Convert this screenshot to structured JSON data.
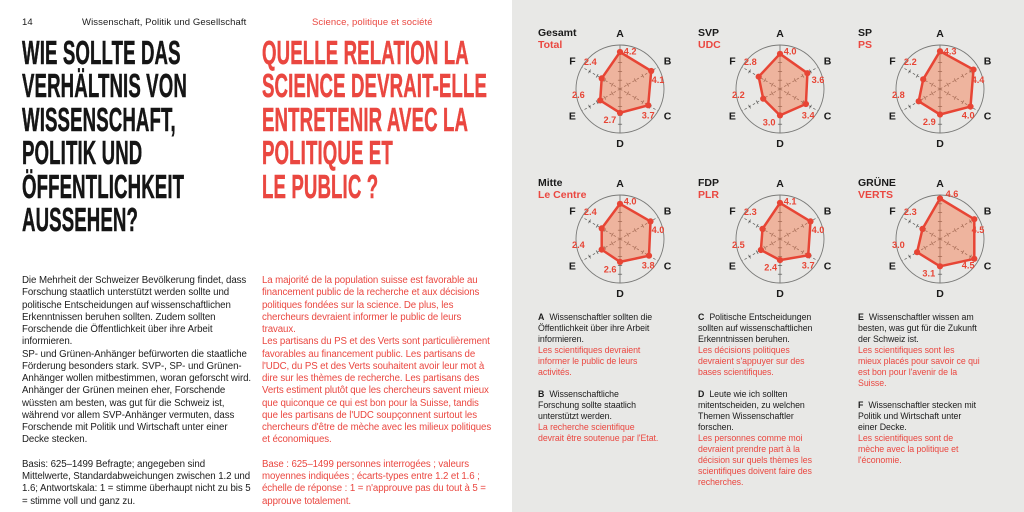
{
  "page": {
    "number": "14",
    "header_de": "Wissenschaft, Politik und Gesellschaft",
    "header_fr": "Science, politique et société",
    "title_de_lines": [
      "WIE SOLLTE DAS",
      "VERHÄLTNIS VON",
      "WISSENSCHAFT,",
      "POLITIK UND",
      "ÖFFENTLICHKEIT",
      "AUSSEHEN?"
    ],
    "title_fr_lines": [
      "QUELLE RELATION LA",
      "SCIENCE DEVRAIT-ELLE",
      "ENTRETENIR AVEC LA",
      "POLITIQUE ET",
      "LE PUBLIC ?"
    ],
    "body_de": [
      "Die Mehrheit der Schweizer Bevölkerung findet, dass Forschung staatlich unterstützt werden sollte und politische Entscheidungen auf wissenschaft­lichen Erkenntnissen beruhen sollten. Zudem sollten Forschende die Öffentlichkeit über ihre Arbeit informieren.",
      "SP- und Grünen-Anhänger befürworten die staatliche Förderung besonders stark. SVP-, SP- und Grünen-Anhänger wollen mitbestimmen, woran geforscht wird. Anhänger der Grünen meinen eher, Forschende wüssten am besten, was gut für die Schweiz ist, während vor allem SVP-Anhänger vermuten, dass Forschende mit Politik und Wirtschaft unter einer Decke stecken."
    ],
    "basis_de": "Basis: 625–1499 Befragte; angegeben sind Mittelwerte, Standardabweichungen zwischen 1.2 und 1.6; Antwortskala: 1 = stimme überhaupt nicht zu bis 5 = stimme voll und ganz zu.",
    "body_fr": [
      "La majorité de la population suisse est favorable au financement public de la recherche et aux décisions politiques fondées sur la science. De plus, les chercheurs devraient informer le public de leurs travaux.",
      "Les partisans du PS et des Verts sont particulièrement favorables au financement public. Les partisans de l'UDC, du PS et des Verts souhaitent avoir leur mot à dire sur les thèmes de recherche. Les partisans des Verts estiment plutôt que les chercheurs savent mieux que quiconque ce qui est bon pour la Suisse, tandis que les partisans de l'UDC soupçonnent surtout les chercheurs d'être de mèche avec les milieux politiques et économiques."
    ],
    "base_fr": "Base : 625–1499 personnes interrogées ; valeurs moyennes indiquées ; écarts-types entre 1.2 et 1.6 ; échelle de réponse : 1 = n'approuve pas du tout à 5 = approuve totalement."
  },
  "colors": {
    "red": "#ea4740",
    "chart_stroke": "#e74535",
    "chart_fill": "rgba(246,118,72,0.45)",
    "axis": "#4a4a48",
    "circle": "#7a7a78",
    "black": "#1a1a1a",
    "right_bg": "#e8e8e6"
  },
  "chart_data": {
    "type": "radar",
    "axes": [
      "A",
      "B",
      "C",
      "D",
      "E",
      "F"
    ],
    "scale_min": 0,
    "scale_max": 5,
    "charts": [
      {
        "title_de": "Gesamt",
        "title_fr": "Total",
        "values": [
          "4.2",
          "4.1",
          "3.7",
          "2.7",
          "2.6",
          "2.4"
        ]
      },
      {
        "title_de": "SVP",
        "title_fr": "UDC",
        "values": [
          "4.0",
          "3.6",
          "3.4",
          "3.0",
          "2.2",
          "2.8"
        ]
      },
      {
        "title_de": "SP",
        "title_fr": "PS",
        "values": [
          "4.3",
          "4.4",
          "4.0",
          "2.9",
          "2.8",
          "2.2"
        ]
      },
      {
        "title_de": "Mitte",
        "title_fr": "Le Centre",
        "values": [
          "4.0",
          "4.0",
          "3.8",
          "2.6",
          "2.4",
          "2.4"
        ]
      },
      {
        "title_de": "FDP",
        "title_fr": "PLR",
        "values": [
          "4.1",
          "4.0",
          "3.7",
          "2.4",
          "2.5",
          "2.3"
        ]
      },
      {
        "title_de": "GRÜNE",
        "title_fr": "VERTS",
        "values": [
          "4.6",
          "4.5",
          "4.5",
          "3.1",
          "3.0",
          "2.3"
        ]
      }
    ]
  },
  "legend": [
    {
      "letter": "A",
      "de": "Wissenschaftler sollten die Öffentlichkeit über ihre Arbeit informieren.",
      "fr": "Les scientifiques devraient informer le public de leurs activités."
    },
    {
      "letter": "B",
      "de": "Wissenschaftliche Forschung sollte staatlich unterstützt werden.",
      "fr": "La recherche scientifique devrait être soutenue par l'Etat."
    },
    {
      "letter": "C",
      "de": "Politische Entscheidungen sollten auf wissenschaftlichen Erkenntnissen beruhen.",
      "fr": "Les décisions politiques devraient s'appuyer sur des bases scientifiques."
    },
    {
      "letter": "D",
      "de": "Leute wie ich sollten mitentscheiden, zu welchen Themen Wissenschaftler forschen.",
      "fr": "Les personnes comme moi devraient prendre part à la décision sur quels thèmes les scientifiques doivent faire des recherches."
    },
    {
      "letter": "E",
      "de": "Wissenschaftler wissen am besten, was gut für die Zukunft der Schweiz ist.",
      "fr": "Les scientifiques sont les mieux placés pour savoir ce qui est bon pour l'avenir de la Suisse."
    },
    {
      "letter": "F",
      "de": "Wissenschaftler stecken mit Politik und Wirtschaft unter einer Decke.",
      "fr": "Les scientifiques sont de mèche avec la politique et l'économie."
    }
  ]
}
